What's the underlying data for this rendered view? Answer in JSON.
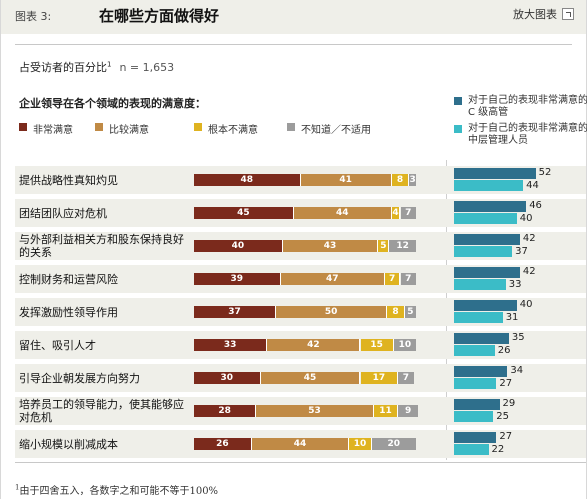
{
  "header": {
    "exhibit": "图表 3:",
    "title": "在哪些方面做得好",
    "enlarge_label": "放大图表",
    "enlarge_icon": "enlarge-icon"
  },
  "base": {
    "label": "占受访者的百分比",
    "footref": "1",
    "sample": "n = 1,653"
  },
  "question": "企业领导在各个领域的表现的满意度：",
  "colors": {
    "very_satisfied": "#7b2a1c",
    "somewhat_satisfied": "#c08a45",
    "not_satisfied": "#dfb320",
    "dont_know": "#9c9c9c",
    "ceo": "#2e6f8c",
    "middle_mgr": "#3bbcc7",
    "row_bg": "#efefe9"
  },
  "legend_left": [
    {
      "label": "非常满意",
      "color": "#7b2a1c"
    },
    {
      "label": "比较满意",
      "color": "#c08a45"
    },
    {
      "label": "根本不满意",
      "color": "#dfb320"
    },
    {
      "label": "不知道／不适用",
      "color": "#9c9c9c"
    }
  ],
  "legend_right": [
    {
      "label": "对于自己的表现非常满意的 C 级高管",
      "color": "#2e6f8c"
    },
    {
      "label": "对于自己的表现非常满意的中层管理人员",
      "color": "#3bbcc7"
    }
  ],
  "footnote": {
    "mark": "1",
    "text": "由于四舍五入，各数字之和可能不等于100%"
  },
  "chart_data": [
    {
      "type": "bar",
      "orientation": "horizontal",
      "stacked": true,
      "xlim": [
        0,
        100
      ],
      "categories": [
        "提供战略性真知灼见",
        "团结团队应对危机",
        "与外部利益相关方和股东保持良好的关系",
        "控制财务和运营风险",
        "发挥激励性领导作用",
        "留住、吸引人才",
        "引导企业朝发展方向努力",
        "培养员工的领导能力，使其能够应对危机",
        "缩小规模以削减成本"
      ],
      "series": [
        {
          "name": "非常满意",
          "values": [
            48,
            45,
            40,
            39,
            37,
            33,
            30,
            28,
            26
          ]
        },
        {
          "name": "比较满意",
          "values": [
            41,
            44,
            43,
            47,
            50,
            42,
            45,
            53,
            44
          ]
        },
        {
          "name": "根本不满意",
          "values": [
            8,
            4,
            5,
            7,
            8,
            15,
            17,
            11,
            10
          ]
        },
        {
          "name": "不知道／不适用",
          "values": [
            3,
            7,
            12,
            7,
            5,
            10,
            7,
            9,
            20
          ]
        }
      ],
      "legend": "top"
    },
    {
      "type": "bar",
      "orientation": "horizontal",
      "stacked": false,
      "xlim": [
        0,
        60
      ],
      "categories": [
        "提供战略性真知灼见",
        "团结团队应对危机",
        "与外部利益相关方和股东保持良好的关系",
        "控制财务和运营风险",
        "发挥激励性领导作用",
        "留住、吸引人才",
        "引导企业朝发展方向努力",
        "培养员工的领导能力，使其能够应对危机",
        "缩小规模以削减成本"
      ],
      "series": [
        {
          "name": "对于自己的表现非常满意的 C 级高管",
          "values": [
            52,
            46,
            42,
            42,
            40,
            35,
            34,
            29,
            27
          ]
        },
        {
          "name": "对于自己的表现非常满意的中层管理人员",
          "values": [
            44,
            40,
            37,
            33,
            31,
            26,
            27,
            25,
            22
          ]
        }
      ],
      "legend": "top-right"
    }
  ]
}
